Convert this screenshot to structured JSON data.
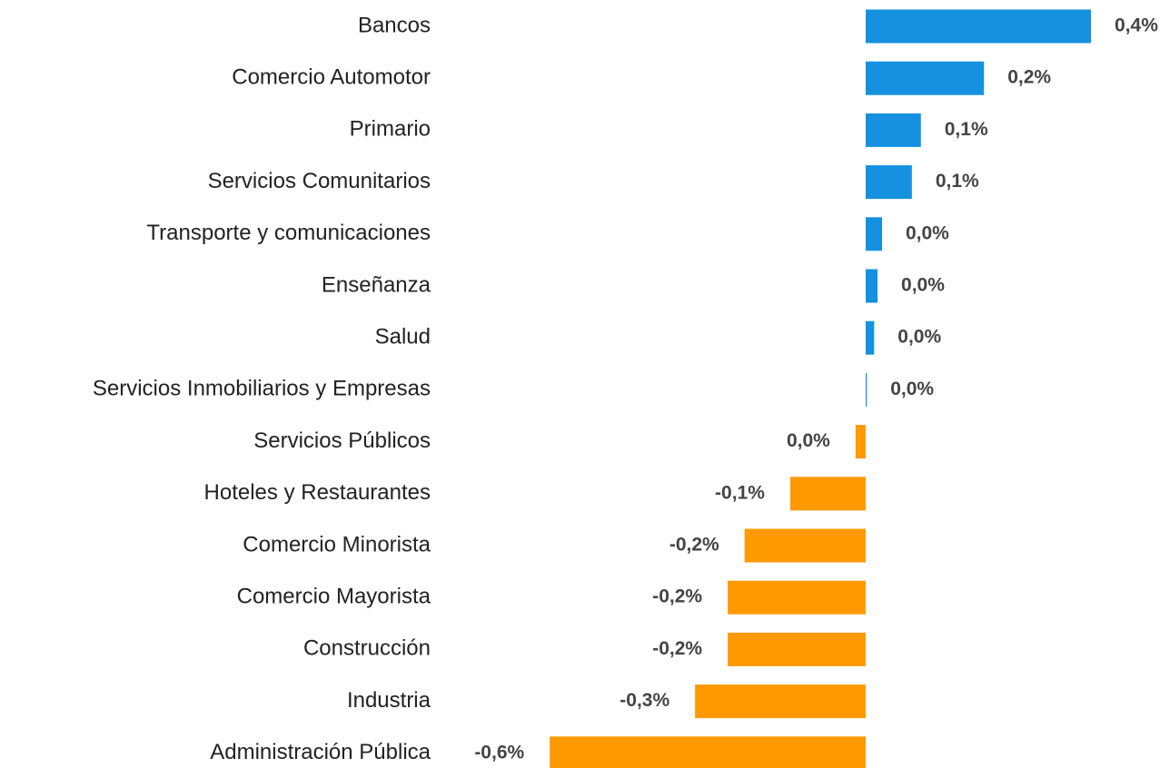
{
  "chart_data": {
    "type": "barh",
    "categories": [
      "Bancos",
      "Comercio Automotor",
      "Primario",
      "Servicios Comunitarios",
      "Transporte y comunicaciones",
      "Enseñanza",
      "Salud",
      "Servicios Inmobiliarios y Empresas",
      "Servicios Públicos",
      "Hoteles y Restaurantes",
      "Comercio Minorista",
      "Comercio Mayorista",
      "Construcción",
      "Industria",
      "Administración Pública"
    ],
    "values": [
      0.4,
      0.21,
      0.098,
      0.082,
      0.029,
      0.021,
      0.015,
      0.002,
      -0.018,
      -0.134,
      -0.215,
      -0.245,
      -0.245,
      -0.303,
      -0.561
    ],
    "value_labels": [
      "0,4%",
      "0,2%",
      "0,1%",
      "0,1%",
      "0,0%",
      "0,0%",
      "0,0%",
      "0,0%",
      "0,0%",
      "-0,1%",
      "-0,2%",
      "-0,2%",
      "-0,2%",
      "-0,3%",
      "-0,6%"
    ],
    "colors": [
      "#1591e0",
      "#1591e0",
      "#1591e0",
      "#1591e0",
      "#1591e0",
      "#1591e0",
      "#1591e0",
      "#1591e0",
      "#ff9900",
      "#ff9900",
      "#ff9900",
      "#ff9900",
      "#ff9900",
      "#ff9900",
      "#ff9900"
    ],
    "xlim": [
      -0.6,
      0.4
    ]
  }
}
